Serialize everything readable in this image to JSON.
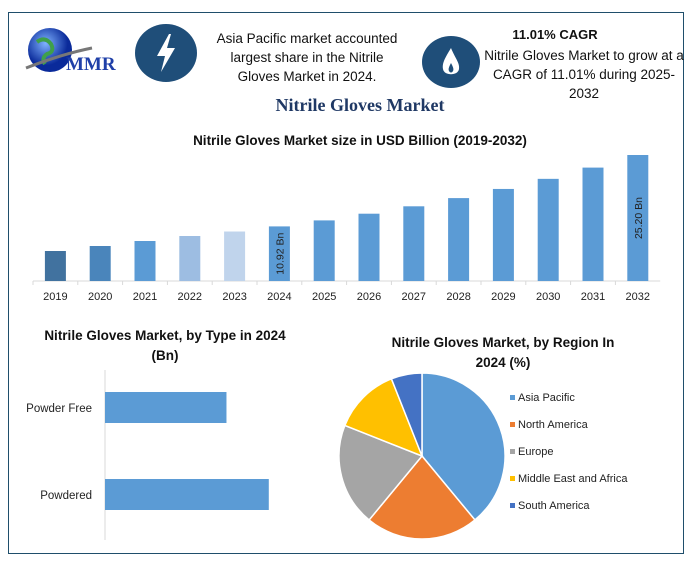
{
  "header": {
    "logo_text": "MMR",
    "info1": "Asia Pacific market accounted largest share in the Nitrile Gloves Market in 2024.",
    "cagr_title": "11.01% CAGR",
    "info2": "Nitrile Gloves Market to grow at a CAGR of 11.01% during 2025-2032",
    "icons": [
      "lightning-icon",
      "flame-icon"
    ],
    "main_title": "Nitrile Gloves Market"
  },
  "chart_data": [
    {
      "type": "bar",
      "title": "Nitrile Gloves Market size in USD Billion (2019-2032)",
      "categories": [
        "2019",
        "2020",
        "2021",
        "2022",
        "2023",
        "2024",
        "2025",
        "2026",
        "2027",
        "2028",
        "2029",
        "2030",
        "2031",
        "2032"
      ],
      "values": [
        6.0,
        7.0,
        8.0,
        9.0,
        9.9,
        10.92,
        12.12,
        13.46,
        14.94,
        16.58,
        18.41,
        20.43,
        22.68,
        25.2
      ],
      "data_labels": {
        "2024": "10.92 Bn",
        "2032": "25.20 Bn"
      },
      "colors": [
        "#41729f",
        "#4a85bb",
        "#5b9bd5",
        "#9dbde2",
        "#c0d4ec",
        "#5b9bd5",
        "#5b9bd5",
        "#5b9bd5",
        "#5b9bd5",
        "#5b9bd5",
        "#5b9bd5",
        "#5b9bd5",
        "#5b9bd5",
        "#5b9bd5"
      ],
      "ylim": [
        0,
        26
      ],
      "grid": false
    },
    {
      "type": "bar",
      "orientation": "horizontal",
      "title": "Nitrile Gloves Market, by Type in 2024 (Bn)",
      "categories": [
        "Powder Free",
        "Powdered"
      ],
      "values": [
        4.65,
        6.27
      ],
      "color": "#5b9bd5"
    },
    {
      "type": "pie",
      "title": "Nitrile Gloves Market, by Region In 2024 (%)",
      "labels": [
        "Asia Pacific",
        "North America",
        "Europe",
        "Middle East and Africa",
        "South America"
      ],
      "values": [
        39,
        22,
        20,
        13,
        6
      ],
      "colors": [
        "#5b9bd5",
        "#ed7d31",
        "#a5a5a5",
        "#ffc000",
        "#4472c4"
      ],
      "legend": "right"
    }
  ]
}
